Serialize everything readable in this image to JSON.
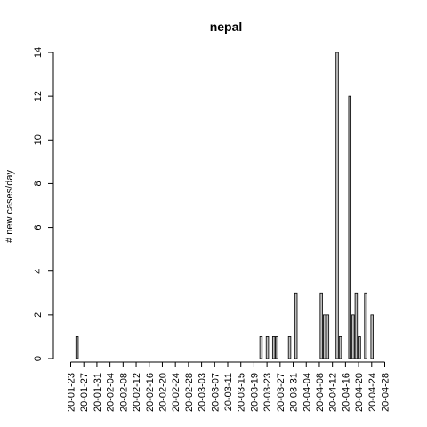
{
  "chart_data": {
    "type": "bar",
    "title": "nepal",
    "xlabel": "",
    "ylabel": "# new cases/day",
    "ylim": [
      0,
      14
    ],
    "yticks": [
      0,
      2,
      4,
      6,
      8,
      10,
      12,
      14
    ],
    "start_date": "2020-01-23",
    "end_date": "2020-05-02",
    "xtick_labels": [
      "20-01-23",
      "20-01-27",
      "20-01-31",
      "20-02-04",
      "20-02-08",
      "20-02-12",
      "20-02-16",
      "20-02-20",
      "20-02-24",
      "20-02-28",
      "20-03-03",
      "20-03-07",
      "20-03-11",
      "20-03-15",
      "20-03-19",
      "20-03-23",
      "20-03-27",
      "20-03-31",
      "20-04-04",
      "20-04-08",
      "20-04-12",
      "20-04-16",
      "20-04-20",
      "20-04-24",
      "20-04-28"
    ],
    "series": [
      {
        "values": [
          {
            "date": "2020-01-25",
            "value": 1
          },
          {
            "date": "2020-03-23",
            "value": 1
          },
          {
            "date": "2020-03-25",
            "value": 1
          },
          {
            "date": "2020-03-27",
            "value": 1
          },
          {
            "date": "2020-03-28",
            "value": 1
          },
          {
            "date": "2020-04-01",
            "value": 1
          },
          {
            "date": "2020-04-03",
            "value": 3
          },
          {
            "date": "2020-04-11",
            "value": 3
          },
          {
            "date": "2020-04-12",
            "value": 2
          },
          {
            "date": "2020-04-13",
            "value": 2
          },
          {
            "date": "2020-04-16",
            "value": 14
          },
          {
            "date": "2020-04-17",
            "value": 1
          },
          {
            "date": "2020-04-20",
            "value": 12
          },
          {
            "date": "2020-04-21",
            "value": 2
          },
          {
            "date": "2020-04-22",
            "value": 3
          },
          {
            "date": "2020-04-23",
            "value": 1
          },
          {
            "date": "2020-04-25",
            "value": 3
          },
          {
            "date": "2020-04-27",
            "value": 2
          }
        ]
      }
    ],
    "grid": false,
    "colors": {
      "bar_fill": "#bebebe",
      "bar_stroke": "#000000"
    }
  }
}
